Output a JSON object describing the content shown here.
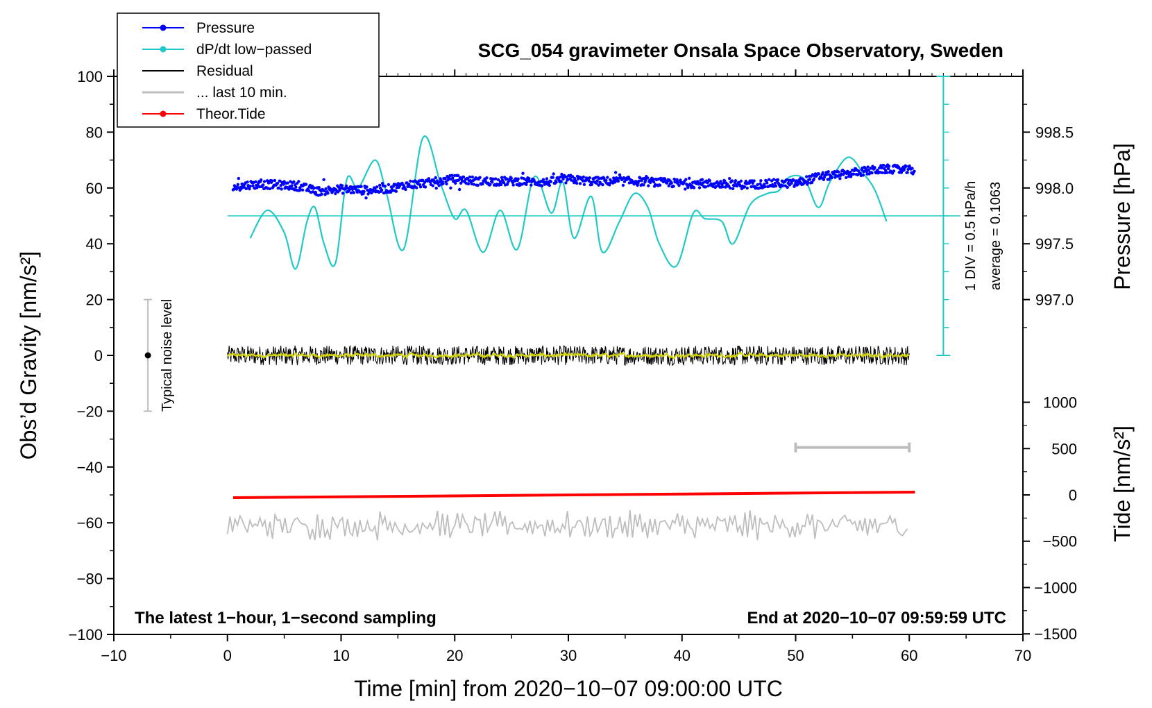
{
  "chart_data": {
    "type": "line",
    "title": "SCG_054 gravimeter Onsala Space Observatory, Sweden",
    "xlabel": "Time [min] from 2020−10−07 09:00:00 UTC",
    "ylabel_left": "Obs’d Gravity [nm/s²]",
    "ylabel_right_pressure": "Pressure [hPa]",
    "ylabel_right_tide": "Tide [nm/s²]",
    "xlim": [
      -10,
      70
    ],
    "ylim": [
      -100,
      100
    ],
    "x_ticks": [
      "−10",
      "0",
      "10",
      "20",
      "30",
      "40",
      "50",
      "60",
      "70"
    ],
    "y_ticks": [
      "100",
      "80",
      "60",
      "40",
      "20",
      "0",
      "−20",
      "−40",
      "−60",
      "−80",
      "−100"
    ],
    "pressure_ticks": [
      "998.5",
      "998.0",
      "997.5",
      "997.0"
    ],
    "pressure_tick_values": [
      998.5,
      998.0,
      997.5,
      997.0
    ],
    "tide_ticks": [
      "1000",
      "500",
      "0",
      "−500",
      "−1000",
      "−1500"
    ],
    "tide_tick_values": [
      1000,
      500,
      0,
      -500,
      -1000,
      -1500
    ],
    "legend": [
      {
        "label": "Pressure",
        "color": "#0000ff",
        "marker": true
      },
      {
        "label": "dP/dt low−passed",
        "color": "#20c8c8",
        "marker": true
      },
      {
        "label": "Residual",
        "color": "#000000",
        "marker": false
      },
      {
        "label": "... last 10 min.",
        "color": "#bdbdbd",
        "marker": false
      },
      {
        "label": "Theor.Tide",
        "color": "#ff0000",
        "marker": true
      }
    ],
    "annotations": {
      "noise": "Typical noise level",
      "div": "1 DIV = 0.5 hPa/h",
      "average": "average = 0.1063",
      "bottom_left": "The latest 1−hour, 1−second sampling",
      "bottom_right": "End at 2020−10−07 09:59:59 UTC"
    },
    "series": [
      {
        "name": "Pressure",
        "unit": "hPa",
        "x": [
          0.5,
          2,
          4,
          6,
          8,
          10,
          12,
          14,
          16,
          18,
          20,
          22,
          24,
          26,
          28,
          30,
          32,
          34,
          36,
          38,
          40,
          42,
          44,
          46,
          48,
          50,
          52,
          54,
          56,
          58,
          60
        ],
        "values": [
          998.0,
          998.03,
          998.03,
          998.02,
          997.97,
          997.99,
          997.98,
          997.99,
          998.03,
          998.05,
          998.08,
          998.06,
          998.06,
          998.06,
          998.05,
          998.08,
          998.06,
          998.06,
          998.06,
          998.05,
          998.04,
          998.04,
          998.03,
          998.03,
          998.04,
          998.04,
          998.1,
          998.12,
          998.15,
          998.17,
          998.16
        ]
      },
      {
        "name": "dP/dt low-passed",
        "unit": "nm/s² (plot units)",
        "x": [
          2,
          3.5,
          5,
          6,
          7,
          7.7,
          8.5,
          9.5,
          10.5,
          11.5,
          13,
          14,
          15.5,
          17.2,
          18.8,
          20,
          21,
          22.5,
          24,
          25.5,
          27,
          28.5,
          29.5,
          30.5,
          32,
          33,
          34.5,
          35.8,
          37,
          38,
          39.5,
          41,
          42,
          43.5,
          44.5,
          46,
          47.5,
          48.5,
          49.5,
          50.8,
          52,
          53,
          54.6,
          56,
          57,
          58
        ],
        "values": [
          42,
          52,
          44,
          31,
          48,
          53,
          40,
          33,
          63,
          60,
          70,
          58,
          38,
          78,
          61,
          49,
          52,
          37,
          52,
          38,
          64,
          51,
          62,
          42,
          57,
          37,
          48,
          58,
          53,
          40,
          32,
          51,
          49,
          48,
          40,
          54,
          58,
          59,
          64,
          63,
          53,
          62,
          71,
          65,
          59,
          48
        ]
      },
      {
        "name": "Residual",
        "unit": "nm/s²",
        "mean": 0,
        "noise_amplitude": 3.5,
        "x_range": [
          0,
          60
        ]
      },
      {
        "name": "... last 10 min.",
        "unit": "nm/s² (offset)",
        "mean": -61,
        "noise_amplitude": 3.5,
        "x_range": [
          0,
          60
        ]
      },
      {
        "name": "Theor.Tide",
        "unit": "nm/s²",
        "x": [
          0.5,
          60.5
        ],
        "values": [
          -5,
          20
        ]
      }
    ],
    "noise_level_bar": {
      "x": -7,
      "y": 0,
      "low": -20,
      "high": 20
    },
    "pressure_reference_level": 50,
    "last_10min_bar": {
      "x_start": 50,
      "x_end": 60
    }
  }
}
